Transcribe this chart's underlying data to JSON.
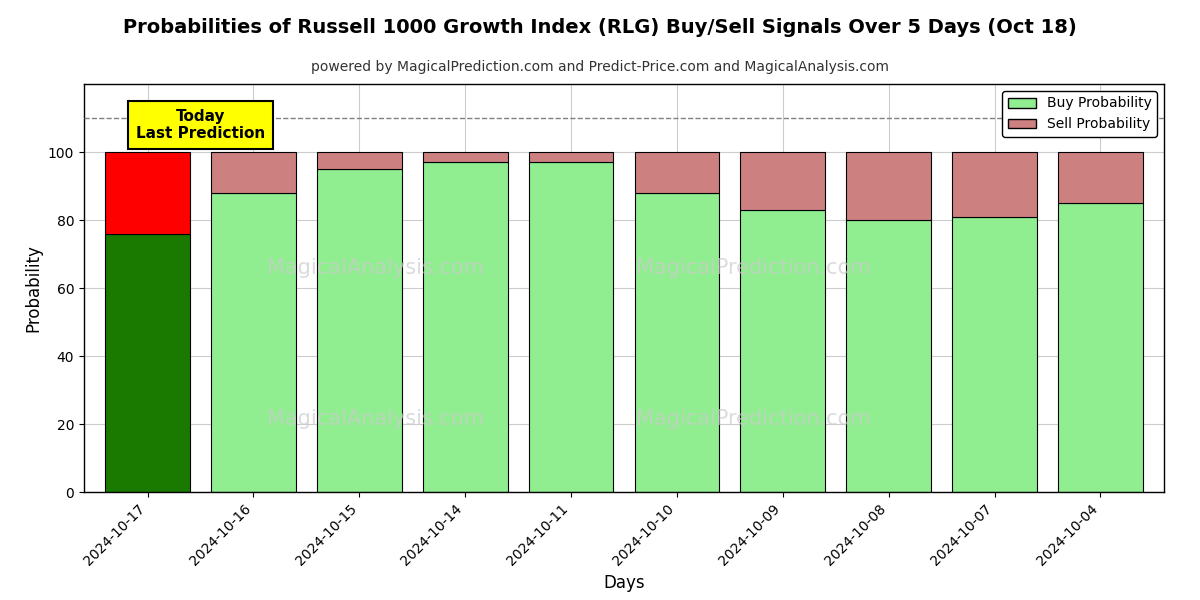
{
  "title": "Probabilities of Russell 1000 Growth Index (RLG) Buy/Sell Signals Over 5 Days (Oct 18)",
  "subtitle": "powered by MagicalPrediction.com and Predict-Price.com and MagicalAnalysis.com",
  "xlabel": "Days",
  "ylabel": "Probability",
  "dates": [
    "2024-10-17",
    "2024-10-16",
    "2024-10-15",
    "2024-10-14",
    "2024-10-11",
    "2024-10-10",
    "2024-10-09",
    "2024-10-08",
    "2024-10-07",
    "2024-10-04"
  ],
  "buy_values": [
    76,
    88,
    95,
    97,
    97,
    88,
    83,
    80,
    81,
    85
  ],
  "sell_values": [
    24,
    12,
    5,
    3,
    3,
    12,
    17,
    20,
    19,
    15
  ],
  "today_bar_index": 0,
  "today_buy_color": "#1a7a00",
  "today_sell_color": "#ff0000",
  "other_buy_color": "#90ee90",
  "other_sell_color": "#cd8080",
  "bar_edge_color": "#000000",
  "ylim": [
    0,
    120
  ],
  "yticks": [
    0,
    20,
    40,
    60,
    80,
    100
  ],
  "dashed_line_y": 110,
  "legend_buy_label": "Buy Probability",
  "legend_sell_label": "Sell Probability",
  "today_label_line1": "Today",
  "today_label_line2": "Last Prediction",
  "today_label_bg": "#ffff00",
  "watermark_texts": [
    "MagicalAnalysis.com",
    "MagicalPrediction.com"
  ],
  "background_color": "#ffffff",
  "grid_color": "#cccccc",
  "title_fontsize": 14,
  "subtitle_fontsize": 10,
  "bar_width": 0.8
}
